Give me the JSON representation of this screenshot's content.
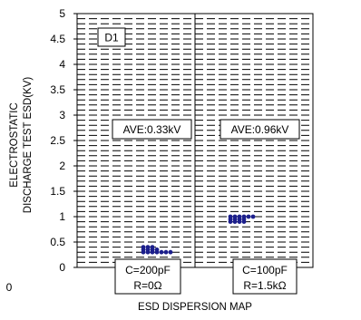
{
  "chart_data": {
    "type": "scatter",
    "ylabel_lines": [
      "ELECTROSTATIC",
      "DISCHARGE TEST ESD(KV)"
    ],
    "xlabel": "ESD DISPERSION MAP",
    "ylim": [
      0,
      5
    ],
    "y_ticks": [
      "0",
      "0.5",
      "1",
      "1.5",
      "2",
      "2.5",
      "3",
      "3.5",
      "4",
      "4.5",
      "5"
    ],
    "grid": true,
    "panel_label": "D1",
    "stray_label": "0",
    "marker_color": "#1c1f8c",
    "groups": [
      {
        "average_label": "AVE:0.33kV",
        "condition_lines": [
          "C=200pF",
          "R=0Ω"
        ],
        "points": [
          {
            "x": 1,
            "y": 0.4
          },
          {
            "x": 2,
            "y": 0.4
          },
          {
            "x": 3,
            "y": 0.4
          },
          {
            "x": 1,
            "y": 0.35
          },
          {
            "x": 2,
            "y": 0.35
          },
          {
            "x": 3,
            "y": 0.35
          },
          {
            "x": 4,
            "y": 0.35
          },
          {
            "x": 1,
            "y": 0.3
          },
          {
            "x": 2,
            "y": 0.3
          },
          {
            "x": 3,
            "y": 0.3
          },
          {
            "x": 4,
            "y": 0.3
          },
          {
            "x": 5,
            "y": 0.3
          },
          {
            "x": 6,
            "y": 0.3
          },
          {
            "x": 7,
            "y": 0.3
          }
        ]
      },
      {
        "average_label": "AVE:0.96kV",
        "condition_lines": [
          "C=100pF",
          "R=1.5kΩ"
        ],
        "points": [
          {
            "x": 1,
            "y": 1.0
          },
          {
            "x": 2,
            "y": 1.0
          },
          {
            "x": 3,
            "y": 1.0
          },
          {
            "x": 4,
            "y": 1.0
          },
          {
            "x": 5,
            "y": 1.0
          },
          {
            "x": 6,
            "y": 1.0
          },
          {
            "x": 1,
            "y": 0.95
          },
          {
            "x": 2,
            "y": 0.95
          },
          {
            "x": 3,
            "y": 0.95
          },
          {
            "x": 4,
            "y": 0.95
          },
          {
            "x": 1,
            "y": 0.9
          },
          {
            "x": 2,
            "y": 0.9
          },
          {
            "x": 3,
            "y": 0.9
          },
          {
            "x": 4,
            "y": 0.9
          }
        ]
      }
    ]
  }
}
